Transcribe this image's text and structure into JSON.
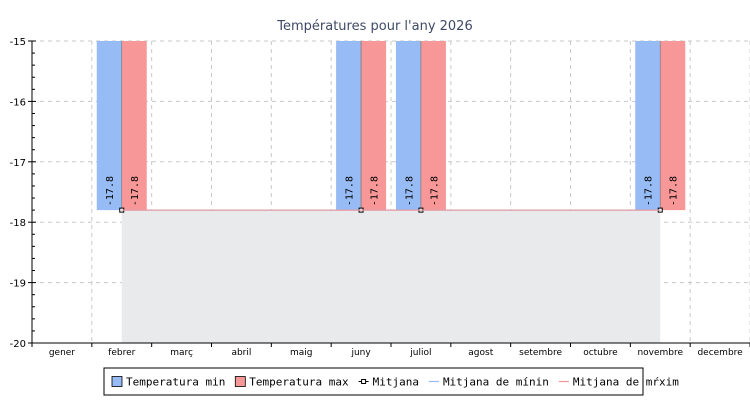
{
  "chart_data": {
    "type": "bar",
    "title": "Températures pour l'any 2026",
    "categories": [
      "gener",
      "febrer",
      "març",
      "abril",
      "maig",
      "juny",
      "juliol",
      "agost",
      "setembre",
      "octubre",
      "novembre",
      "decembre"
    ],
    "series": [
      {
        "name": "Temperatura min",
        "kind": "bar",
        "color": "#97bbf5",
        "values": [
          null,
          -17.8,
          null,
          null,
          null,
          -17.8,
          -17.8,
          null,
          null,
          null,
          -17.8,
          null
        ]
      },
      {
        "name": "Temperatura max",
        "kind": "bar",
        "color": "#f79797",
        "values": [
          null,
          -17.8,
          null,
          null,
          null,
          -17.8,
          -17.8,
          null,
          null,
          null,
          -17.8,
          null
        ]
      },
      {
        "name": "Mitjana",
        "kind": "line",
        "color": "#000000",
        "marker": "square",
        "values": [
          null,
          -17.8,
          -17.8,
          -17.8,
          -17.8,
          -17.8,
          -17.8,
          -17.8,
          -17.8,
          -17.8,
          -17.8,
          null
        ]
      },
      {
        "name": "Mitjana de mínin",
        "kind": "line",
        "color": "#97bbf5",
        "values": [
          null,
          -17.8,
          -17.8,
          -17.8,
          -17.8,
          -17.8,
          -17.8,
          -17.8,
          -17.8,
          -17.8,
          -17.8,
          null
        ]
      },
      {
        "name": "Mitjana de mŕxim",
        "kind": "line",
        "color": "#f79797",
        "values": [
          null,
          -17.8,
          -17.8,
          -17.8,
          -17.8,
          -17.8,
          -17.8,
          -17.8,
          -17.8,
          -17.8,
          -17.8,
          null
        ]
      }
    ],
    "data_labels": "-17.8",
    "ylim": [
      -20,
      -15
    ],
    "yticks": [
      "-15",
      "-16",
      "-17",
      "-18",
      "-19",
      "-20"
    ],
    "grid": true,
    "legend_position": "bottom",
    "range_fill_color": "#e9eaec",
    "xlabel": "",
    "ylabel": ""
  }
}
